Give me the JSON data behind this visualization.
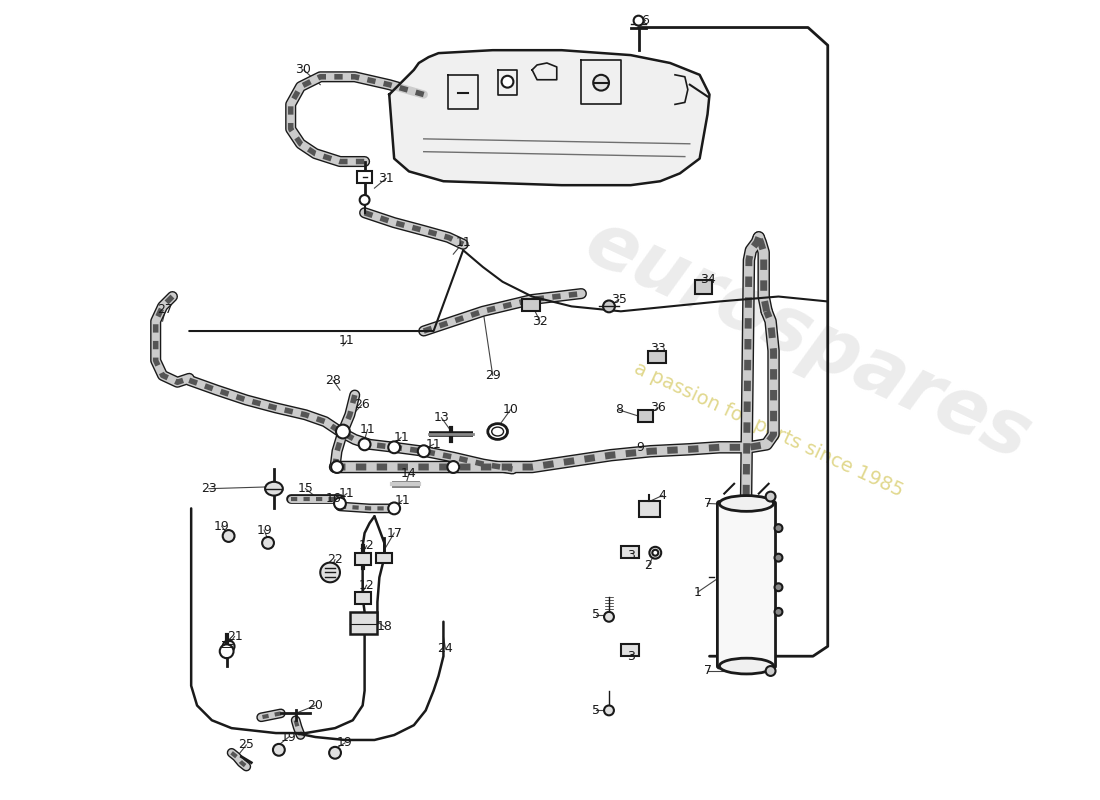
{
  "bg_color": "#ffffff",
  "lc": "#1a1a1a",
  "hose_color": "#444444",
  "pipe_color": "#1a1a1a",
  "watermark1": "eurospares",
  "watermark2": "a passion for parts since 1985",
  "figsize": [
    11.0,
    8.0
  ],
  "dpi": 100
}
